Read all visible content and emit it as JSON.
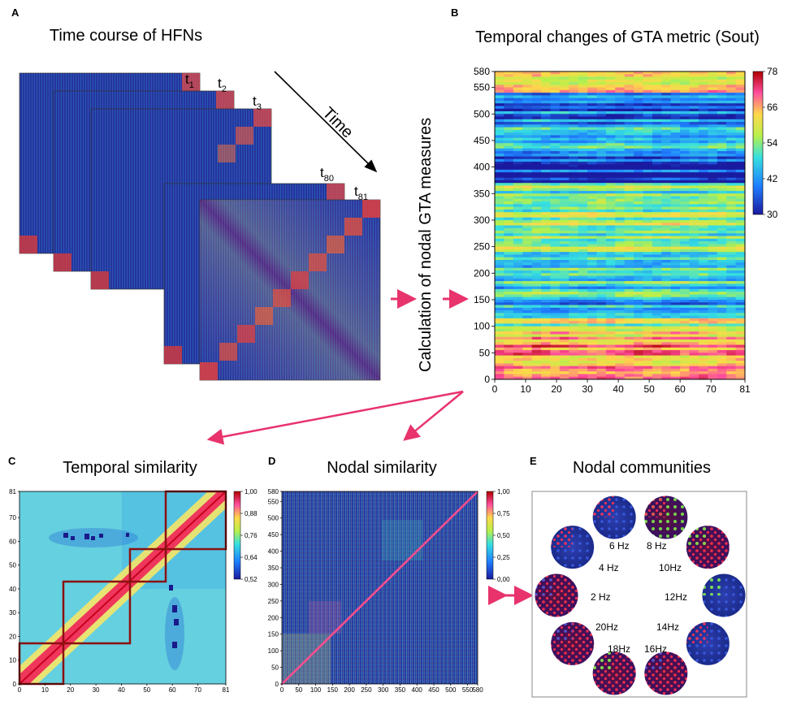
{
  "figure": {
    "panels": {
      "A": {
        "letter": "A",
        "title": "Time course of HFNs",
        "matrix_labels": [
          {
            "base": "t",
            "sub": "1"
          },
          {
            "base": "t",
            "sub": "2"
          },
          {
            "base": "t",
            "sub": "3"
          },
          {
            "base": "t",
            "sub": "80"
          },
          {
            "base": "t",
            "sub": "81"
          }
        ],
        "arrow_label": "Time"
      },
      "B": {
        "letter": "B",
        "title": "Temporal changes of GTA metric (Sout)",
        "ylabel": "Calculation of nodal GTA measures"
      },
      "C": {
        "letter": "C",
        "title": "Temporal similarity"
      },
      "D": {
        "letter": "D",
        "title": "Nodal similarity"
      },
      "E": {
        "letter": "E",
        "title": "Nodal communities",
        "frequencies": [
          "6 Hz",
          "8 Hz",
          "4 Hz",
          "10Hz",
          "2 Hz",
          "12Hz",
          "20Hz",
          "14Hz",
          "18Hz",
          "16Hz"
        ]
      }
    },
    "colors": {
      "arrow": "#e8336d",
      "border_dark_red": "#8b1010",
      "matrix_bg": "#1f2f9c"
    }
  },
  "chart_data": [
    {
      "id": "B",
      "type": "heatmap",
      "title": "Temporal changes of GTA metric (Sout)",
      "xlabel": "",
      "ylabel": "Calculation of nodal GTA measures",
      "xlim": [
        0,
        81
      ],
      "ylim": [
        0,
        580
      ],
      "xticks": [
        "0",
        "10",
        "20",
        "30",
        "40",
        "50",
        "60",
        "70",
        "81"
      ],
      "yticks": [
        "0",
        "50",
        "100",
        "150",
        "200",
        "250",
        "300",
        "350",
        "400",
        "450",
        "500",
        "550",
        "580"
      ],
      "colorbar": {
        "ticks": [
          "78",
          "66",
          "54",
          "42",
          "30"
        ],
        "range": [
          30,
          78
        ]
      }
    },
    {
      "id": "C",
      "type": "heatmap",
      "title": "Temporal similarity",
      "xlim": [
        0,
        81
      ],
      "ylim": [
        0,
        81
      ],
      "xticks": [
        "0",
        "10",
        "20",
        "30",
        "40",
        "50",
        "60",
        "70",
        "81"
      ],
      "yticks": [
        "0",
        "10",
        "20",
        "30",
        "40",
        "50",
        "60",
        "70",
        "81"
      ],
      "colorbar": {
        "ticks": [
          "1,00",
          "0,88",
          "0,76",
          "0,64",
          "0,52"
        ],
        "range": [
          0.52,
          1.0
        ]
      },
      "blocks": [
        [
          0,
          17
        ],
        [
          18,
          43
        ],
        [
          44,
          58
        ],
        [
          59,
          81
        ]
      ]
    },
    {
      "id": "D",
      "type": "heatmap",
      "title": "Nodal similarity",
      "xlim": [
        0,
        580
      ],
      "ylim": [
        0,
        580
      ],
      "xticks": [
        "0",
        "50",
        "100",
        "150",
        "200",
        "250",
        "300",
        "350",
        "400",
        "450",
        "500",
        "550",
        "580"
      ],
      "yticks": [
        "0",
        "50",
        "100",
        "150",
        "200",
        "250",
        "300",
        "350",
        "400",
        "450",
        "500",
        "550",
        "580"
      ],
      "colorbar": {
        "ticks": [
          "1,00",
          "0,75",
          "0,50",
          "0,25",
          "0,00"
        ],
        "range": [
          0,
          1
        ]
      }
    }
  ]
}
